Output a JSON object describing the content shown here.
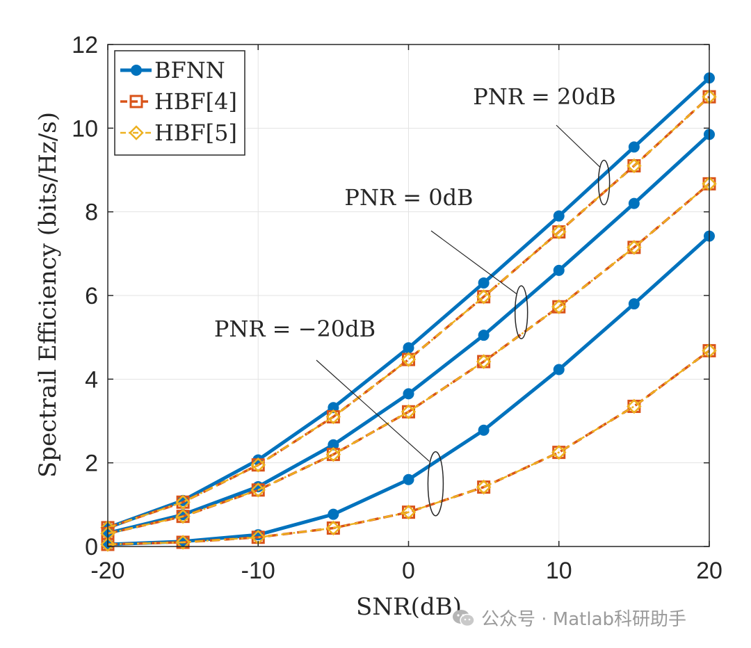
{
  "chart_data": {
    "type": "line",
    "xlabel": "SNR(dB)",
    "ylabel": "Spectrail Efficiency (bits/Hz/s)",
    "xlim": [
      -20,
      20
    ],
    "ylim": [
      0,
      12
    ],
    "xticks": [
      -20,
      -10,
      0,
      10,
      20
    ],
    "yticks": [
      0,
      2,
      4,
      6,
      8,
      10,
      12
    ],
    "grid": true,
    "legend_position": "top-left",
    "x": [
      -20,
      -15,
      -10,
      -5,
      0,
      5,
      10,
      15,
      20
    ],
    "series": [
      {
        "name": "BFNN",
        "group": "PNR = 20dB",
        "style": "solid-circle",
        "color": "#0072BD",
        "values": [
          0.45,
          1.1,
          2.07,
          3.32,
          4.75,
          6.3,
          7.9,
          9.55,
          11.2
        ]
      },
      {
        "name": "HBF[4]",
        "group": "PNR = 20dB",
        "style": "dashed-square",
        "color": "#D95319",
        "values": [
          0.45,
          1.06,
          1.95,
          3.1,
          4.47,
          5.97,
          7.52,
          9.1,
          10.75
        ]
      },
      {
        "name": "HBF[5]",
        "group": "PNR = 20dB",
        "style": "dashdot-diamond",
        "color": "#EDB120",
        "values": [
          0.45,
          1.06,
          1.95,
          3.1,
          4.47,
          5.97,
          7.52,
          9.1,
          10.75
        ]
      },
      {
        "name": "BFNN",
        "group": "PNR = 0dB",
        "style": "solid-circle",
        "color": "#0072BD",
        "values": [
          0.32,
          0.76,
          1.43,
          2.43,
          3.65,
          5.05,
          6.6,
          8.2,
          9.85
        ]
      },
      {
        "name": "HBF[4]",
        "group": "PNR = 0dB",
        "style": "dashed-square",
        "color": "#D95319",
        "values": [
          0.31,
          0.72,
          1.35,
          2.2,
          3.22,
          4.42,
          5.73,
          7.15,
          8.67
        ]
      },
      {
        "name": "HBF[5]",
        "group": "PNR = 0dB",
        "style": "dashdot-diamond",
        "color": "#EDB120",
        "values": [
          0.31,
          0.72,
          1.35,
          2.2,
          3.22,
          4.42,
          5.73,
          7.15,
          8.67
        ]
      },
      {
        "name": "BFNN",
        "group": "PNR = -20dB",
        "style": "solid-circle",
        "color": "#0072BD",
        "values": [
          0.05,
          0.12,
          0.28,
          0.77,
          1.6,
          2.78,
          4.23,
          5.8,
          7.42
        ]
      },
      {
        "name": "HBF[4]",
        "group": "PNR = -20dB",
        "style": "dashed-square",
        "color": "#D95319",
        "values": [
          0.05,
          0.1,
          0.22,
          0.44,
          0.82,
          1.42,
          2.25,
          3.35,
          4.68
        ]
      },
      {
        "name": "HBF[5]",
        "group": "PNR = -20dB",
        "style": "dashdot-diamond",
        "color": "#EDB120",
        "values": [
          0.05,
          0.1,
          0.22,
          0.44,
          0.82,
          1.42,
          2.25,
          3.35,
          4.68
        ]
      }
    ],
    "legend": [
      "BFNN",
      "HBF[4]",
      "HBF[5]"
    ],
    "annotations": [
      {
        "text": "PNR = 20dB",
        "ellipse_at": [
          13,
          8.7
        ]
      },
      {
        "text": "PNR = 0dB",
        "ellipse_at": [
          7.5,
          5.6
        ]
      },
      {
        "text": "PNR = −20dB",
        "ellipse_at": [
          1.8,
          1.5
        ]
      }
    ]
  },
  "watermark": {
    "text": "公众号 · Matlab科研助手",
    "icon": "wechat-icon"
  }
}
